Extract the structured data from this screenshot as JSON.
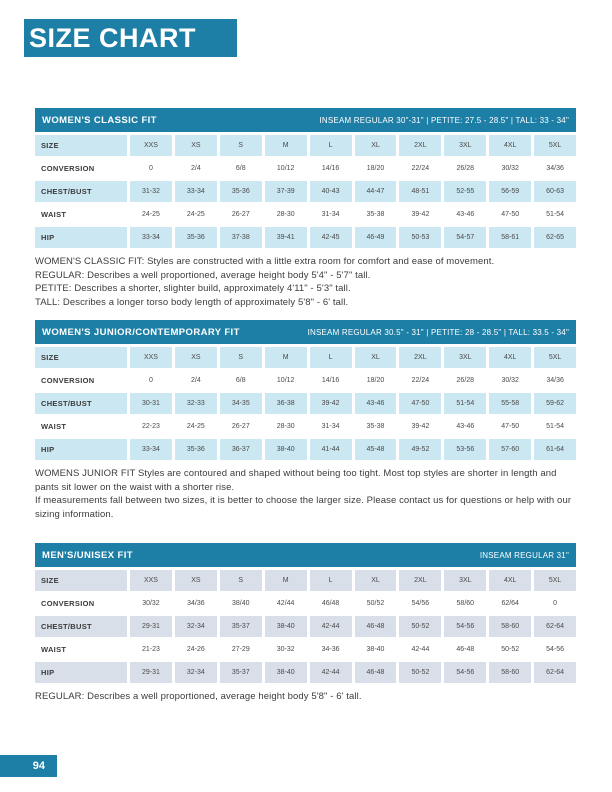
{
  "page": {
    "title": "SIZE CHART",
    "page_number": "94"
  },
  "colors": {
    "teal": "#1E7FA6",
    "women_cell": "#CBE7F1",
    "men_cell": "#D9DFE8",
    "text": "#3C3C3C"
  },
  "tables": [
    {
      "title": "WOMEN'S CLASSIC FIT",
      "inseam": "INSEAM REGULAR 30\"-31\"  |  PETITE: 27.5 - 28.5\"  |  TALL: 33 - 34\"",
      "rows": [
        {
          "label": "SIZE",
          "shaded": true,
          "values": [
            "XXS",
            "XS",
            "S",
            "M",
            "L",
            "XL",
            "2XL",
            "3XL",
            "4XL",
            "5XL"
          ]
        },
        {
          "label": "CONVERSION",
          "shaded": false,
          "values": [
            "0",
            "2/4",
            "6/8",
            "10/12",
            "14/16",
            "18/20",
            "22/24",
            "26/28",
            "30/32",
            "34/36"
          ]
        },
        {
          "label": "CHEST/BUST",
          "shaded": true,
          "values": [
            "31-32",
            "33-34",
            "35-36",
            "37-39",
            "40-43",
            "44-47",
            "48-51",
            "52-55",
            "56-59",
            "60-63"
          ]
        },
        {
          "label": "WAIST",
          "shaded": false,
          "values": [
            "24-25",
            "24-25",
            "26-27",
            "28-30",
            "31-34",
            "35-38",
            "39-42",
            "43-46",
            "47-50",
            "51-54"
          ]
        },
        {
          "label": "HIP",
          "shaded": true,
          "values": [
            "33-34",
            "35-36",
            "37-38",
            "39-41",
            "42-45",
            "46-49",
            "50-53",
            "54-57",
            "58-61",
            "62-65"
          ]
        }
      ],
      "notes": [
        "WOMEN'S CLASSIC FIT: Styles are constructed with a little extra room for comfort and ease of movement.",
        "REGULAR: Describes a well proportioned, average height body 5'4\" - 5'7\" tall.",
        "PETITE: Describes a shorter, slighter build, approximately 4'11\" - 5'3\" tall.",
        "TALL: Describes a longer torso body length of approximately 5'8\" - 6' tall."
      ]
    },
    {
      "title": "WOMEN'S JUNIOR/CONTEMPORARY FIT",
      "inseam": "INSEAM REGULAR 30.5\" - 31\"  |  PETITE: 28 - 28.5\"  |  TALL: 33.5 - 34\"",
      "rows": [
        {
          "label": "SIZE",
          "shaded": true,
          "values": [
            "XXS",
            "XS",
            "S",
            "M",
            "L",
            "XL",
            "2XL",
            "3XL",
            "4XL",
            "5XL"
          ]
        },
        {
          "label": "CONVERSION",
          "shaded": false,
          "values": [
            "0",
            "2/4",
            "6/8",
            "10/12",
            "14/16",
            "18/20",
            "22/24",
            "26/28",
            "30/32",
            "34/36"
          ]
        },
        {
          "label": "CHEST/BUST",
          "shaded": true,
          "values": [
            "30-31",
            "32-33",
            "34-35",
            "36-38",
            "39-42",
            "43-46",
            "47-50",
            "51-54",
            "55-58",
            "59-62"
          ]
        },
        {
          "label": "WAIST",
          "shaded": false,
          "values": [
            "22-23",
            "24-25",
            "26-27",
            "28-30",
            "31-34",
            "35-38",
            "39-42",
            "43-46",
            "47-50",
            "51-54"
          ]
        },
        {
          "label": "HIP",
          "shaded": true,
          "values": [
            "33-34",
            "35-36",
            "36-37",
            "38-40",
            "41-44",
            "45-48",
            "49-52",
            "53-56",
            "57-60",
            "61-64"
          ]
        }
      ],
      "notes": [
        "WOMENS JUNIOR FIT Styles are contoured and shaped without being too tight. Most top styles are shorter in length and pants sit lower on the waist with a shorter rise.",
        "If measurements fall between two sizes, it is better to choose the larger size. Please contact us for questions or help with our sizing information."
      ]
    },
    {
      "title": "MEN'S/UNISEX FIT",
      "inseam": "INSEAM REGULAR 31\"",
      "rows": [
        {
          "label": "SIZE",
          "shaded": true,
          "values": [
            "XXS",
            "XS",
            "S",
            "M",
            "L",
            "XL",
            "2XL",
            "3XL",
            "4XL",
            "5XL"
          ]
        },
        {
          "label": "CONVERSION",
          "shaded": false,
          "values": [
            "30/32",
            "34/36",
            "38/40",
            "42/44",
            "46/48",
            "50/52",
            "54/56",
            "58/60",
            "62/64",
            "0"
          ]
        },
        {
          "label": "CHEST/BUST",
          "shaded": true,
          "values": [
            "29-31",
            "32-34",
            "35-37",
            "38-40",
            "42-44",
            "46-48",
            "50-52",
            "54-56",
            "58-60",
            "62-64"
          ]
        },
        {
          "label": "WAIST",
          "shaded": false,
          "values": [
            "21-23",
            "24-26",
            "27-29",
            "30-32",
            "34-36",
            "38-40",
            "42-44",
            "46-48",
            "50-52",
            "54-56"
          ]
        },
        {
          "label": "HIP",
          "shaded": true,
          "values": [
            "29-31",
            "32-34",
            "35-37",
            "38-40",
            "42-44",
            "46-48",
            "50-52",
            "54-56",
            "58-60",
            "62-64"
          ]
        }
      ],
      "notes": [
        "REGULAR: Describes a well proportioned, average height body 5'8\" - 6' tall."
      ]
    }
  ]
}
